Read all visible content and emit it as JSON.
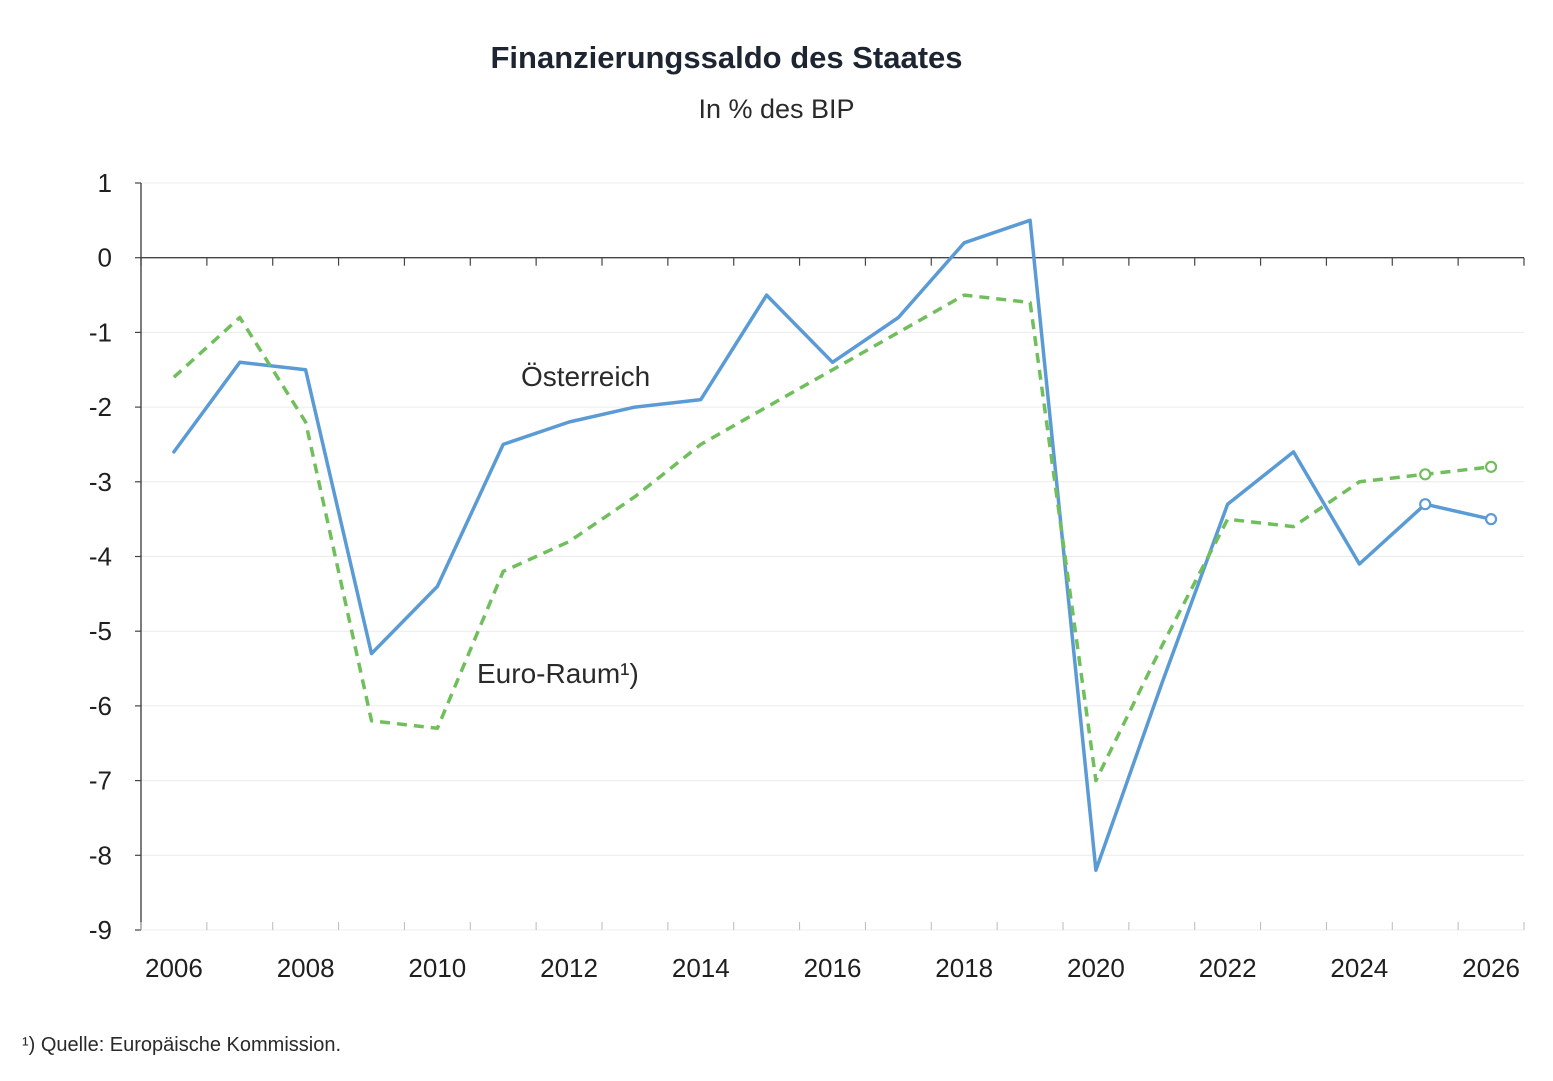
{
  "chart_data": {
    "type": "line",
    "title": "Finanzierungssaldo des Staates",
    "subtitle": "In % des BIP",
    "x": [
      2006,
      2007,
      2008,
      2009,
      2010,
      2011,
      2012,
      2013,
      2014,
      2015,
      2016,
      2017,
      2018,
      2019,
      2020,
      2021,
      2022,
      2023,
      2024,
      2025,
      2026
    ],
    "x_tick_labels": [
      "2006",
      "2008",
      "2010",
      "2012",
      "2014",
      "2016",
      "2018",
      "2020",
      "2022",
      "2024",
      "2026"
    ],
    "y_tick_labels": [
      "1",
      "0",
      "-1",
      "-2",
      "-3",
      "-4",
      "-5",
      "-6",
      "-7",
      "-8",
      "-9"
    ],
    "ylim": [
      -9,
      1
    ],
    "xlim": [
      2005.5,
      2026.5
    ],
    "grid": true,
    "series": [
      {
        "name": "Österreich",
        "color": "#5b9bd5",
        "dash": "solid",
        "values": [
          -2.6,
          -1.4,
          -1.5,
          -5.3,
          -4.4,
          -2.5,
          -2.2,
          -2.0,
          -1.9,
          -0.5,
          -1.4,
          -0.8,
          0.2,
          0.5,
          -8.2,
          -5.7,
          -3.3,
          -2.6,
          -4.1,
          -3.3,
          -3.5
        ],
        "forecast_markers_at": [
          2025,
          2026
        ]
      },
      {
        "name": "Euro-Raum¹)",
        "color": "#70bf5c",
        "dash": "dashed",
        "values": [
          -1.6,
          -0.8,
          -2.2,
          -6.2,
          -6.3,
          -4.2,
          -3.8,
          -3.2,
          -2.5,
          -2.0,
          -1.5,
          -1.0,
          -0.5,
          -0.6,
          -7.0,
          -5.2,
          -3.5,
          -3.6,
          -3.0,
          -2.9,
          -2.8
        ],
        "forecast_markers_at": [
          2025,
          2026
        ]
      }
    ],
    "footnote": "¹) Quelle: Europäische Kommission."
  }
}
